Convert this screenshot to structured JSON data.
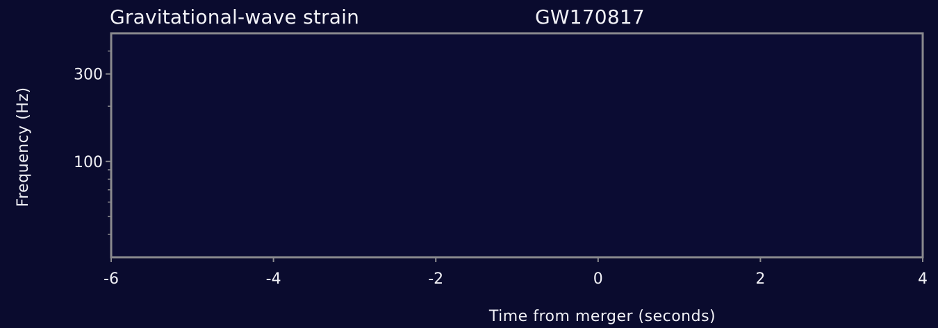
{
  "chart_data": {
    "type": "heatmap",
    "title": "Gravitational-wave strain",
    "subtitle": "GW170817",
    "xlabel": "Time from merger (seconds)",
    "ylabel": "Frequency (Hz)",
    "xlim": [
      -6,
      4
    ],
    "ylim": [
      30,
      500
    ],
    "y_scale": "log",
    "x_ticks": [
      "-6",
      "-4",
      "-2",
      "0",
      "2",
      "4"
    ],
    "x_tick_values": [
      -6,
      -4,
      -2,
      0,
      2,
      4
    ],
    "y_ticks": [
      "100",
      "300"
    ],
    "y_tick_values": [
      100,
      300
    ],
    "y_minor_tick_values": [
      40,
      50,
      60,
      70,
      80,
      90,
      200,
      400
    ],
    "grid": false,
    "legend": "none",
    "values": []
  },
  "colors": {
    "background": "#0a0b2e",
    "frame": "#8a8a8e",
    "text": "#f0f0f5"
  }
}
